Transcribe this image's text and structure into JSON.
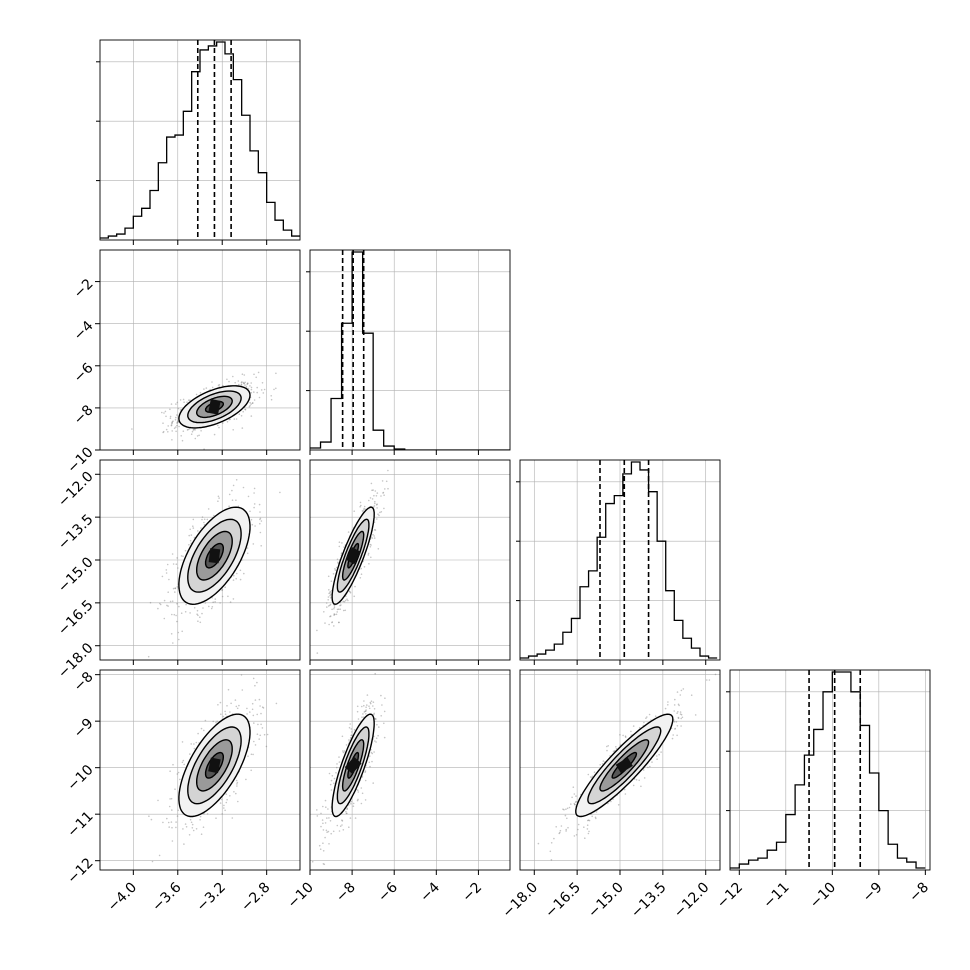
{
  "chart_data": {
    "type": "corner",
    "description_source": "corner plot of a 4-parameter posterior: 1D histograms on the diagonal with 16/50/84% quantile lines, 2D density + contours below the diagonal",
    "parameters": [
      {
        "index": 0,
        "range": [
          -4.3,
          -2.5
        ],
        "ticks": [
          -4.0,
          -3.6,
          -3.2,
          -2.8
        ],
        "tick_labels": [
          "−4.0",
          "−3.6",
          "−3.2",
          "−2.8"
        ],
        "quantiles": [
          -3.42,
          -3.27,
          -3.12
        ],
        "hist_bins": [
          -4.3,
          -4.225,
          -4.15,
          -4.075,
          -4.0,
          -3.925,
          -3.85,
          -3.775,
          -3.7,
          -3.625,
          -3.55,
          -3.475,
          -3.4,
          -3.325,
          -3.25,
          -3.175,
          -3.1,
          -3.025,
          -2.95,
          -2.875,
          -2.8,
          -2.725,
          -2.65,
          -2.575,
          -2.5
        ],
        "hist_counts": [
          0.01,
          0.02,
          0.03,
          0.06,
          0.12,
          0.16,
          0.25,
          0.39,
          0.52,
          0.53,
          0.65,
          0.85,
          0.96,
          0.98,
          1.0,
          0.94,
          0.81,
          0.63,
          0.45,
          0.34,
          0.19,
          0.1,
          0.05,
          0.02
        ],
        "mean": -3.27,
        "sd": 0.16
      },
      {
        "index": 1,
        "range": [
          -10.0,
          -0.5
        ],
        "ticks": [
          -10,
          -8,
          -6,
          -4,
          -2
        ],
        "tick_labels": [
          "−10",
          "−8",
          "−6",
          "−4",
          "−2"
        ],
        "quantiles": [
          -8.45,
          -7.95,
          -7.45
        ],
        "hist_bins": [
          -10.0,
          -9.5,
          -9.0,
          -8.5,
          -8.0,
          -7.5,
          -7.0,
          -6.5,
          -6.0,
          -5.5,
          -5.0,
          -4.5,
          -4.0,
          -3.5,
          -3.0,
          -2.5,
          -2.0,
          -1.5,
          -1.0,
          -0.5
        ],
        "hist_counts": [
          0.01,
          0.04,
          0.26,
          0.64,
          1.0,
          0.59,
          0.1,
          0.02,
          0.005,
          0,
          0,
          0,
          0,
          0,
          0,
          0,
          0,
          0,
          0
        ],
        "mean": -7.95,
        "sd": 0.5
      },
      {
        "index": 2,
        "range": [
          -18.5,
          -11.5
        ],
        "ticks": [
          -18.0,
          -16.5,
          -15.0,
          -13.5,
          -12.0
        ],
        "tick_labels": [
          "−18.0",
          "−16.5",
          "−15.0",
          "−13.5",
          "−12.0"
        ],
        "quantiles": [
          -15.7,
          -14.85,
          -14.0
        ],
        "hist_bins": [
          -18.5,
          -18.2,
          -17.9,
          -17.6,
          -17.3,
          -17.0,
          -16.7,
          -16.4,
          -16.1,
          -15.8,
          -15.5,
          -15.2,
          -14.9,
          -14.6,
          -14.3,
          -14.0,
          -13.7,
          -13.4,
          -13.1,
          -12.8,
          -12.5,
          -12.2,
          -11.9,
          -11.6
        ],
        "hist_counts": [
          0.01,
          0.02,
          0.03,
          0.05,
          0.08,
          0.14,
          0.21,
          0.37,
          0.45,
          0.62,
          0.79,
          0.83,
          0.94,
          1.0,
          0.96,
          0.85,
          0.6,
          0.35,
          0.2,
          0.11,
          0.06,
          0.02,
          0.01
        ],
        "mean": -14.85,
        "sd": 0.85
      },
      {
        "index": 3,
        "range": [
          -12.2,
          -7.9
        ],
        "ticks": [
          -12,
          -11,
          -10,
          -9,
          -8
        ],
        "tick_labels": [
          "−12",
          "−11",
          "−10",
          "−9",
          "−8"
        ],
        "quantiles": [
          -10.5,
          -9.95,
          -9.4
        ],
        "hist_bins": [
          -12.2,
          -12.0,
          -11.8,
          -11.6,
          -11.4,
          -11.2,
          -11.0,
          -10.8,
          -10.6,
          -10.4,
          -10.2,
          -10.0,
          -9.8,
          -9.6,
          -9.4,
          -9.2,
          -9.0,
          -8.8,
          -8.6,
          -8.4,
          -8.2,
          -8.0
        ],
        "hist_counts": [
          0.01,
          0.03,
          0.05,
          0.06,
          0.1,
          0.14,
          0.28,
          0.43,
          0.58,
          0.71,
          0.9,
          1.0,
          1.0,
          0.9,
          0.73,
          0.49,
          0.3,
          0.13,
          0.06,
          0.04,
          0.01
        ],
        "mean": -9.95,
        "sd": 0.55
      }
    ],
    "correlations": {
      "1-0": 0.55,
      "2-0": 0.6,
      "2-1": 0.85,
      "3-0": 0.65,
      "3-1": 0.82,
      "3-2": 0.9
    },
    "y_axis_panels": {
      "row1_ticks": [
        -10,
        -8,
        -6,
        -4,
        -2
      ],
      "row1_tick_labels": [
        "−10",
        "−8",
        "−6",
        "−4",
        "−2"
      ],
      "row2_ticks": [
        -18.0,
        -16.5,
        -15.0,
        -13.5,
        -12.0
      ],
      "row2_tick_labels": [
        "−18.0",
        "−16.5",
        "−15.0",
        "−13.5",
        "−12.0"
      ],
      "row3_ticks": [
        -12,
        -11,
        -10,
        -9,
        -8
      ],
      "row3_tick_labels": [
        "−12",
        "−11",
        "−10",
        "−9",
        "−8"
      ]
    },
    "contour_levels_sigma": [
      0.5,
      1.0,
      1.5,
      2.0
    ],
    "grid": true,
    "quantile_line_style": "dashed",
    "colors": {
      "line": "#000000",
      "grid": "#b0b0b0",
      "points": "#7f7f7f",
      "background": "#ffffff"
    }
  }
}
